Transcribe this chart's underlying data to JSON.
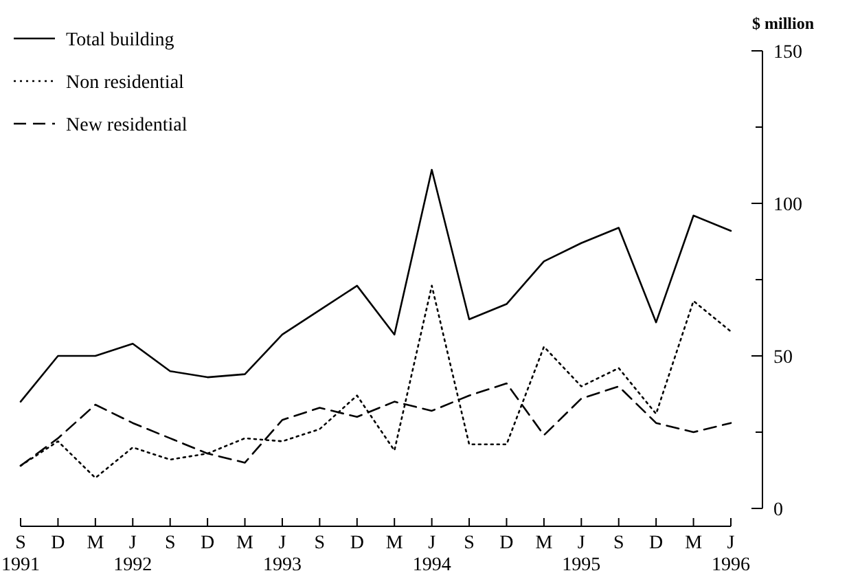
{
  "chart_data": {
    "type": "line",
    "ylabel": "$ million",
    "categories": [
      "S\n1991",
      "D",
      "M",
      "J\n1992",
      "S",
      "D",
      "M",
      "J\n1993",
      "S",
      "D",
      "M",
      "J\n1994",
      "S",
      "D",
      "M",
      "J\n1995",
      "S",
      "D",
      "M",
      "J\n1996"
    ],
    "series": [
      {
        "name": "Total building",
        "color": "#000000",
        "line_style": "solid",
        "values": [
          35,
          50,
          50,
          54,
          45,
          43,
          44,
          57,
          65,
          73,
          57,
          111,
          62,
          67,
          81,
          87,
          92,
          61,
          96,
          91
        ]
      },
      {
        "name": "Non residential",
        "color": "#000000",
        "line_style": "dotted",
        "values": [
          14,
          22,
          10,
          20,
          16,
          18,
          23,
          22,
          26,
          37,
          19,
          73,
          21,
          21,
          53,
          40,
          46,
          31,
          68,
          58
        ]
      },
      {
        "name": "New residential",
        "color": "#000000",
        "line_style": "dashed",
        "values": [
          14,
          23,
          34,
          28,
          23,
          18,
          15,
          29,
          33,
          30,
          35,
          32,
          37,
          41,
          24,
          36,
          40,
          28,
          25,
          28
        ]
      }
    ],
    "ylim": [
      0,
      150
    ],
    "yticks": [
      0,
      {
        "value": 25,
        "label": null
      },
      50,
      {
        "value": 75,
        "label": null
      },
      100,
      {
        "value": 125,
        "label": null
      },
      150
    ],
    "grid": false,
    "legend": "top left",
    "marker": "none"
  }
}
